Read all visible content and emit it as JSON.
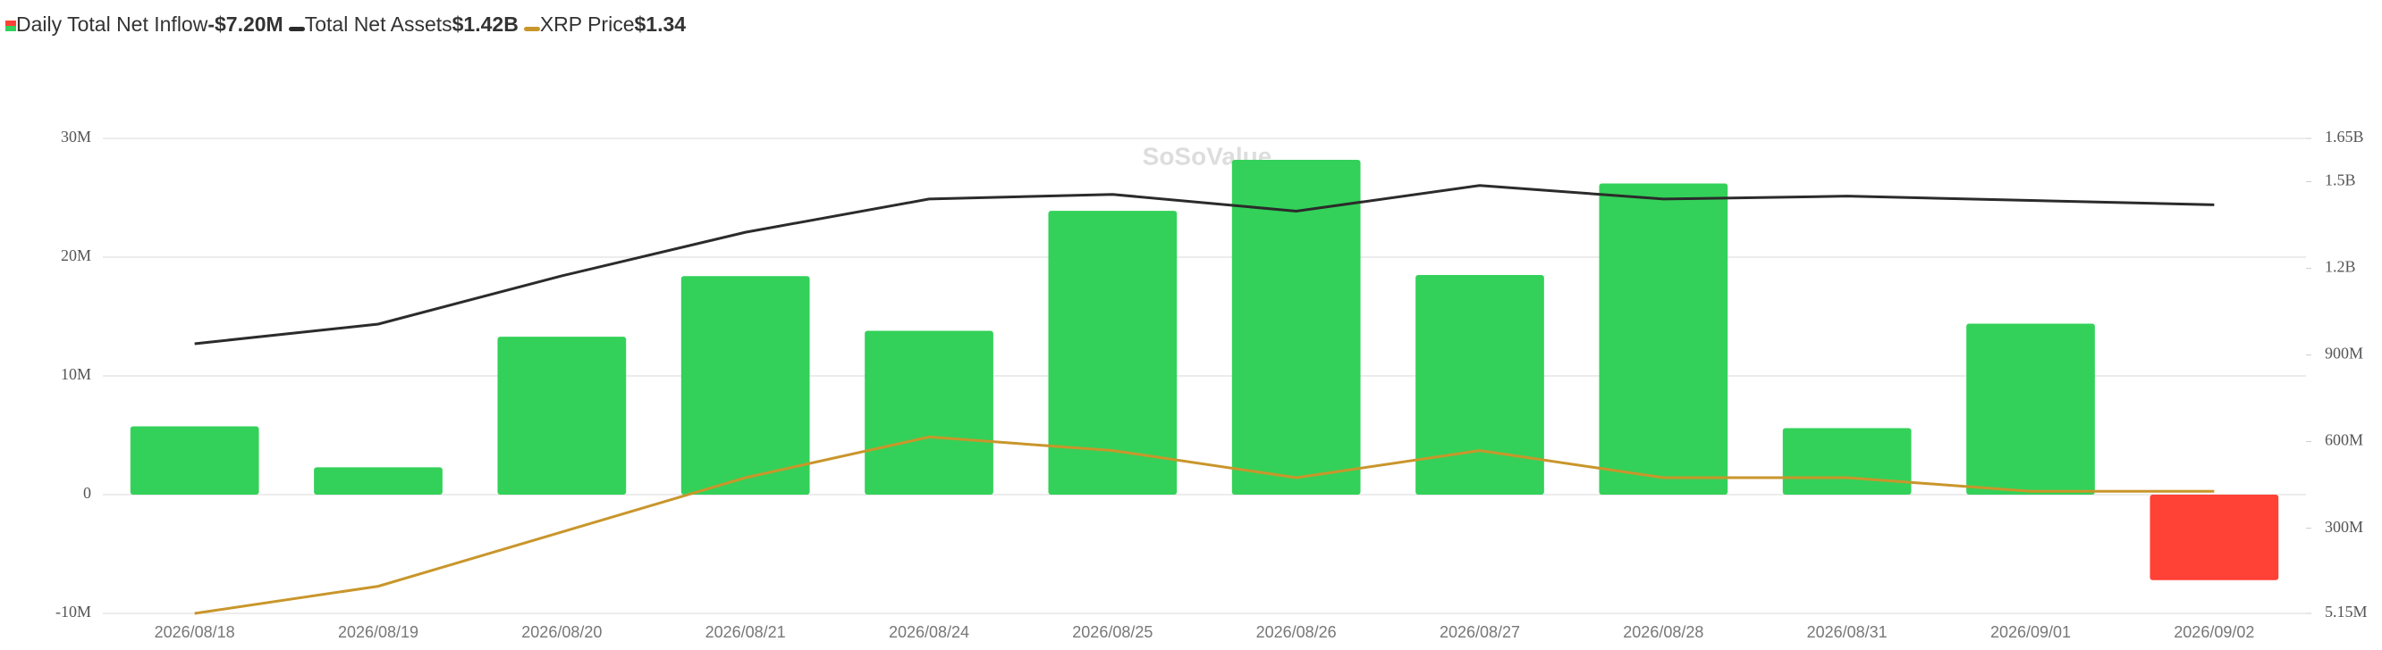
{
  "chart_data": {
    "type": "bar",
    "watermark": "SoSoValue",
    "categories": [
      "2026/08/18",
      "2026/08/19",
      "2026/08/20",
      "2026/08/21",
      "2026/08/24",
      "2026/08/25",
      "2026/08/26",
      "2026/08/27",
      "2026/08/28",
      "2026/08/31",
      "2026/09/01",
      "2026/09/02"
    ],
    "series": [
      {
        "name": "Daily Total Net Inflow",
        "legend_value": "-$7.20M",
        "type": "bar",
        "axis": "y",
        "color": "#33d159",
        "negative_color": "#ff4136",
        "values": [
          5750000,
          2300000,
          13300000,
          18400000,
          13800000,
          23900000,
          28200000,
          18500000,
          26200000,
          5600000,
          14400000,
          -7200000
        ]
      },
      {
        "name": "Total Net Assets",
        "legend_value": "$1.42B",
        "type": "line",
        "axis": "y2",
        "color": "#2b2b2b",
        "values": [
          939000000,
          1007000000,
          1174000000,
          1325000000,
          1440000000,
          1456000000,
          1398000000,
          1487000000,
          1440000000,
          1450000000,
          1435000000,
          1420000000
        ]
      },
      {
        "name": "XRP Price",
        "legend_value": "$1.34",
        "type": "line",
        "axis": "y3",
        "color": "#c9962b",
        "values": [
          1.25,
          1.27,
          1.31,
          1.35,
          1.38,
          1.37,
          1.35,
          1.37,
          1.35,
          1.35,
          1.34,
          1.34
        ]
      }
    ],
    "ylim": [
      -10000000,
      30000000
    ],
    "yticks": [
      {
        "value": -10000000,
        "label": "-10M"
      },
      0,
      {
        "value": 10000000,
        "label": "10M"
      },
      {
        "value": 20000000,
        "label": "20M"
      },
      {
        "value": 30000000,
        "label": "30M"
      }
    ],
    "y2lim": [
      5150000,
      1650000000
    ],
    "y2ticks": [
      {
        "value": 5150000,
        "label": "5.15M"
      },
      {
        "value": 300000000,
        "label": "300M"
      },
      {
        "value": 600000000,
        "label": "600M"
      },
      {
        "value": 900000000,
        "label": "900M"
      },
      {
        "value": 1200000000,
        "label": "1.2B"
      },
      {
        "value": 1500000000,
        "label": "1.5B"
      },
      {
        "value": 1650000000,
        "label": "1.65B"
      }
    ],
    "y3lim": [
      1.25,
      1.6
    ],
    "grid": true
  }
}
